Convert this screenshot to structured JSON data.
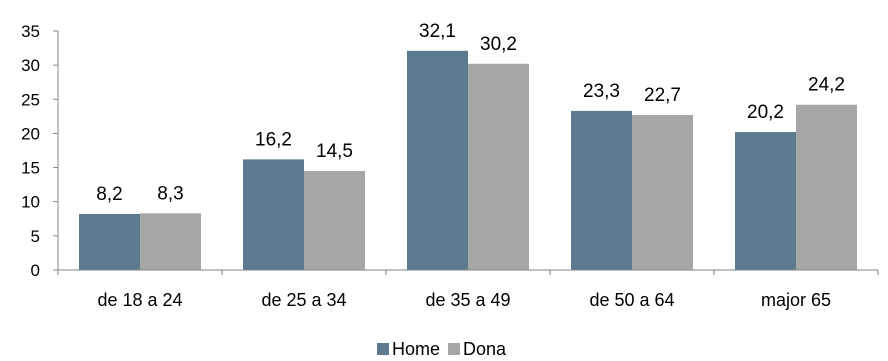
{
  "chart_data": {
    "type": "bar",
    "categories": [
      "de 18 a 24",
      "de 25 a 34",
      "de 35 a 49",
      "de 50 a 64",
      "major 65"
    ],
    "series": [
      {
        "name": "Home",
        "values": [
          8.2,
          16.2,
          32.1,
          23.3,
          20.2
        ],
        "labels": [
          "8,2",
          "16,2",
          "32,1",
          "23,3",
          "20,2"
        ],
        "color": "#5b7a8f"
      },
      {
        "name": "Dona",
        "values": [
          8.3,
          14.5,
          30.2,
          22.7,
          24.2
        ],
        "labels": [
          "8,3",
          "14,5",
          "30,2",
          "22,7",
          "24,2"
        ],
        "color": "#a6a6a6"
      }
    ],
    "yticks": [
      0,
      5,
      10,
      15,
      20,
      25,
      30,
      35
    ],
    "ylim": [
      0,
      35
    ],
    "grid": false,
    "legend": "bottom-center",
    "title": "",
    "xlabel": "",
    "ylabel": ""
  }
}
